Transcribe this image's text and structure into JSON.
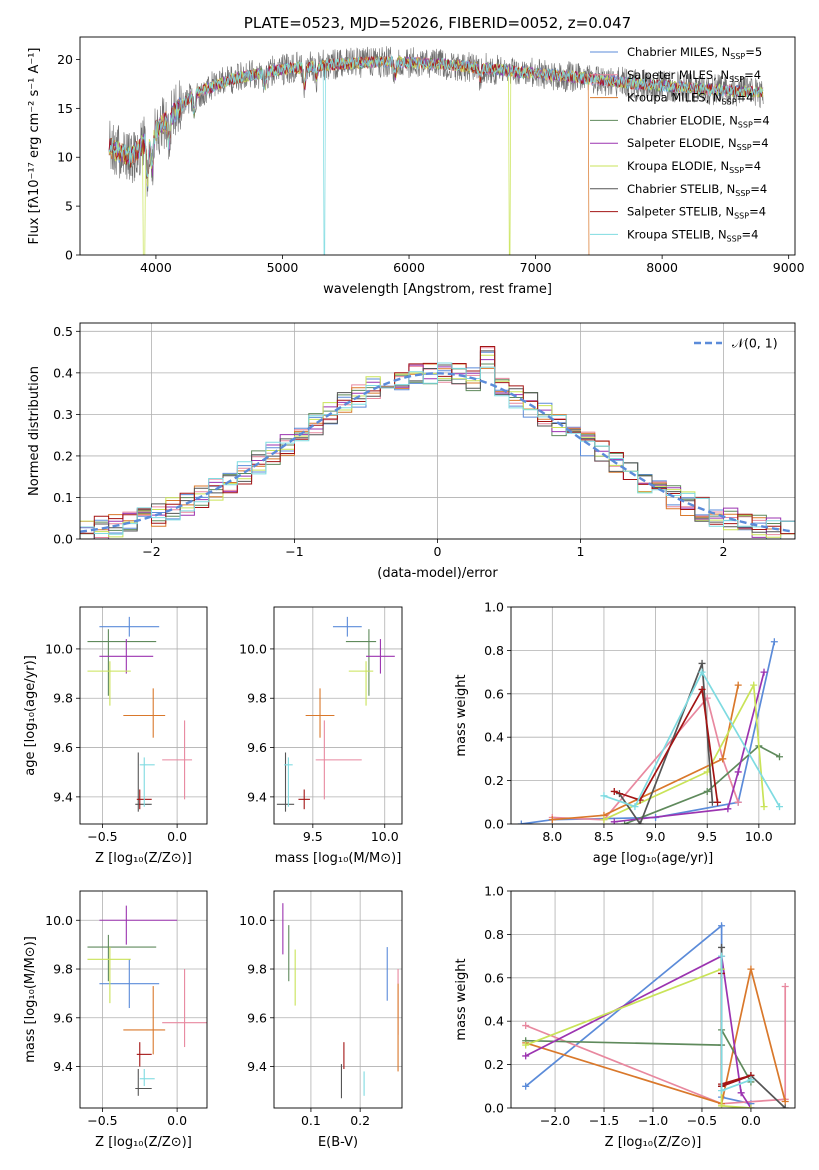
{
  "colors": {
    "Chabrier MILES": "#5b8bd9",
    "Salpeter MILES": "#e8889f",
    "Kroupa MILES": "#d9782b",
    "Chabrier ELODIE": "#5f8a5c",
    "Salpeter ELODIE": "#9b33b0",
    "Kroupa ELODIE": "#c9e358",
    "Chabrier STELIB": "#555555",
    "Salpeter STELIB": "#a31414",
    "Kroupa STELIB": "#7fdbe1"
  },
  "chart_data": [
    {
      "id": "spectrum",
      "type": "line",
      "title": "PLATE=0523, MJD=52026, FIBERID=0052, z=0.047",
      "xlabel": "wavelength [Angstrom, rest frame]",
      "ylabel": "Flux [fλ10⁻¹⁷ erg cm⁻² s⁻¹ A⁻¹]",
      "xlim": [
        3400,
        9050
      ],
      "ylim": [
        0,
        22.3
      ],
      "xticks": [
        4000,
        5000,
        6000,
        7000,
        8000,
        9000
      ],
      "yticks": [
        0,
        5,
        10,
        15,
        20
      ],
      "continuum": [
        [
          3630,
          11
        ],
        [
          3800,
          10
        ],
        [
          3950,
          12
        ],
        [
          4100,
          14
        ],
        [
          4300,
          16.5
        ],
        [
          4600,
          18
        ],
        [
          5000,
          19
        ],
        [
          5400,
          19.5
        ],
        [
          5800,
          19.8
        ],
        [
          6300,
          19.5
        ],
        [
          6800,
          18.8
        ],
        [
          7300,
          18.2
        ],
        [
          7800,
          17.5
        ],
        [
          8300,
          17
        ],
        [
          8800,
          16.6
        ]
      ],
      "series": [
        {
          "name": "Chabrier MILES",
          "nssp": "5"
        },
        {
          "name": "Salpeter MILES",
          "nssp": "4"
        },
        {
          "name": "Kroupa MILES",
          "nssp": "4"
        },
        {
          "name": "Chabrier ELODIE",
          "nssp": "4"
        },
        {
          "name": "Salpeter ELODIE",
          "nssp": "4"
        },
        {
          "name": "Kroupa ELODIE",
          "nssp": "4"
        },
        {
          "name": "Chabrier STELIB",
          "nssp": "4"
        },
        {
          "name": "Salpeter STELIB",
          "nssp": "4"
        },
        {
          "name": "Kroupa STELIB",
          "nssp": "4"
        }
      ],
      "nssp_prefix": "N",
      "nssp_sub": "SSP",
      "nssp_eq": "=",
      "legend": "upper right"
    },
    {
      "id": "residuals",
      "type": "line",
      "xlabel": "(data-model)/error",
      "ylabel": "Normed distribution",
      "xlim": [
        -2.5,
        2.5
      ],
      "ylim": [
        0,
        0.52
      ],
      "xticks": [
        -2,
        -1,
        0,
        1,
        2
      ],
      "yticks": [
        0.0,
        0.1,
        0.2,
        0.3,
        0.4,
        0.5
      ],
      "gaussian_label": "𝒩(0, 1)",
      "grid": true,
      "legend": "upper right"
    },
    {
      "id": "z-age",
      "type": "scatter",
      "xlabel": "Z [log₁₀(Z/Z⊙)]",
      "ylabel": "age  [log₁₀(age/yr)]",
      "xlim": [
        -0.65,
        0.2
      ],
      "ylim": [
        9.29,
        10.17
      ],
      "xticks": [
        -0.5,
        0.0
      ],
      "yticks": [
        9.4,
        9.6,
        9.8,
        10.0
      ],
      "points": [
        {
          "s": "Chabrier MILES",
          "x": -0.32,
          "y": 10.09,
          "xerr": [
            0.2,
            0.2
          ],
          "yerr": [
            0.04,
            0.04
          ]
        },
        {
          "s": "Salpeter MILES",
          "x": 0.05,
          "y": 9.55,
          "xerr": [
            0.15,
            0.05
          ],
          "yerr": [
            0.16,
            0.16
          ]
        },
        {
          "s": "Kroupa MILES",
          "x": -0.16,
          "y": 9.73,
          "xerr": [
            0.2,
            0.08
          ],
          "yerr": [
            0.09,
            0.11
          ]
        },
        {
          "s": "Chabrier ELODIE",
          "x": -0.46,
          "y": 10.03,
          "xerr": [
            0.14,
            0.32
          ],
          "yerr": [
            0.22,
            0.05
          ]
        },
        {
          "s": "Salpeter ELODIE",
          "x": -0.34,
          "y": 9.97,
          "xerr": [
            0.18,
            0.18
          ],
          "yerr": [
            0.07,
            0.07
          ]
        },
        {
          "s": "Kroupa ELODIE",
          "x": -0.45,
          "y": 9.91,
          "xerr": [
            0.15,
            0.14
          ],
          "yerr": [
            0.14,
            0.04
          ]
        },
        {
          "s": "Chabrier STELIB",
          "x": -0.26,
          "y": 9.37,
          "xerr": [
            0.02,
            0.09
          ],
          "yerr": [
            0.03,
            0.21
          ]
        },
        {
          "s": "Salpeter STELIB",
          "x": -0.25,
          "y": 9.39,
          "xerr": [
            0.02,
            0.08
          ],
          "yerr": [
            0.04,
            0.04
          ]
        },
        {
          "s": "Kroupa STELIB",
          "x": -0.22,
          "y": 9.53,
          "xerr": [
            0.03,
            0.07
          ],
          "yerr": [
            0.17,
            0.03
          ]
        }
      ]
    },
    {
      "id": "mass-age",
      "type": "scatter",
      "xlabel": "mass [log₁₀(M/M⊙)]",
      "ylabel": "",
      "xlim": [
        9.23,
        10.12
      ],
      "ylim": [
        9.29,
        10.17
      ],
      "xticks": [
        9.5,
        10.0
      ],
      "yticks": [
        9.4,
        9.6,
        9.8,
        10.0
      ],
      "points": [
        {
          "s": "Chabrier MILES",
          "x": 9.74,
          "y": 10.09,
          "xerr": [
            0.1,
            0.1
          ],
          "yerr": [
            0.04,
            0.04
          ]
        },
        {
          "s": "Salpeter MILES",
          "x": 9.58,
          "y": 9.55,
          "xerr": [
            0.06,
            0.26
          ],
          "yerr": [
            0.16,
            0.16
          ]
        },
        {
          "s": "Kroupa MILES",
          "x": 9.55,
          "y": 9.73,
          "xerr": [
            0.1,
            0.1
          ],
          "yerr": [
            0.09,
            0.11
          ]
        },
        {
          "s": "Chabrier ELODIE",
          "x": 9.89,
          "y": 10.03,
          "xerr": [
            0.16,
            0.05
          ],
          "yerr": [
            0.22,
            0.05
          ]
        },
        {
          "s": "Salpeter ELODIE",
          "x": 9.97,
          "y": 9.97,
          "xerr": [
            0.1,
            0.1
          ],
          "yerr": [
            0.07,
            0.07
          ]
        },
        {
          "s": "Kroupa ELODIE",
          "x": 9.87,
          "y": 9.91,
          "xerr": [
            0.12,
            0.05
          ],
          "yerr": [
            0.14,
            0.04
          ]
        },
        {
          "s": "Chabrier STELIB",
          "x": 9.31,
          "y": 9.37,
          "xerr": [
            0.06,
            0.06
          ],
          "yerr": [
            0.03,
            0.21
          ]
        },
        {
          "s": "Salpeter STELIB",
          "x": 9.44,
          "y": 9.39,
          "xerr": [
            0.04,
            0.04
          ],
          "yerr": [
            0.04,
            0.04
          ]
        },
        {
          "s": "Kroupa STELIB",
          "x": 9.33,
          "y": 9.53,
          "xerr": [
            0.03,
            0.03
          ],
          "yerr": [
            0.17,
            0.03
          ]
        }
      ]
    },
    {
      "id": "age-weight",
      "type": "line",
      "xlabel": "age  [log₁₀(age/yr)]",
      "ylabel": "mass weight",
      "xlim": [
        7.6,
        10.35
      ],
      "ylim": [
        0.0,
        1.0
      ],
      "xticks": [
        8.0,
        8.5,
        9.0,
        9.5,
        10.0
      ],
      "yticks": [
        0.0,
        0.2,
        0.4,
        0.6,
        0.8,
        1.0
      ],
      "series": [
        {
          "name": "Chabrier MILES",
          "points": [
            [
              7.7,
              0.0
            ],
            [
              8.0,
              0.02
            ],
            [
              9.0,
              0.03
            ],
            [
              9.8,
              0.1
            ],
            [
              10.15,
              0.84
            ]
          ]
        },
        {
          "name": "Salpeter MILES",
          "points": [
            [
              8.0,
              0.03
            ],
            [
              8.5,
              0.02
            ],
            [
              9.5,
              0.58
            ],
            [
              9.65,
              0.3
            ],
            [
              9.8,
              0.1
            ]
          ]
        },
        {
          "name": "Kroupa MILES",
          "points": [
            [
              8.0,
              0.02
            ],
            [
              8.5,
              0.04
            ],
            [
              9.65,
              0.3
            ],
            [
              9.8,
              0.64
            ]
          ]
        },
        {
          "name": "Chabrier ELODIE",
          "points": [
            [
              8.7,
              0.0
            ],
            [
              9.5,
              0.15
            ],
            [
              10.0,
              0.36
            ],
            [
              10.2,
              0.31
            ]
          ]
        },
        {
          "name": "Salpeter ELODIE",
          "points": [
            [
              8.6,
              0.01
            ],
            [
              9.7,
              0.07
            ],
            [
              9.8,
              0.24
            ],
            [
              10.05,
              0.7
            ]
          ]
        },
        {
          "name": "Kroupa ELODIE",
          "points": [
            [
              8.5,
              0.02
            ],
            [
              9.5,
              0.24
            ],
            [
              9.95,
              0.64
            ],
            [
              10.05,
              0.08
            ]
          ]
        },
        {
          "name": "Chabrier STELIB",
          "points": [
            [
              8.65,
              0.14
            ],
            [
              8.85,
              0.0
            ],
            [
              9.45,
              0.74
            ],
            [
              9.55,
              0.1
            ]
          ]
        },
        {
          "name": "Salpeter STELIB",
          "points": [
            [
              8.6,
              0.15
            ],
            [
              8.85,
              0.11
            ],
            [
              9.45,
              0.62
            ],
            [
              9.6,
              0.1
            ]
          ]
        },
        {
          "name": "Kroupa STELIB",
          "points": [
            [
              8.5,
              0.13
            ],
            [
              8.8,
              0.08
            ],
            [
              9.45,
              0.7
            ],
            [
              10.2,
              0.08
            ]
          ]
        }
      ]
    },
    {
      "id": "z-mass",
      "type": "scatter",
      "xlabel": "Z [log₁₀(Z/Z⊙)]",
      "ylabel": "mass [log₁₀(M/M⊙)]",
      "xlim": [
        -0.65,
        0.2
      ],
      "ylim": [
        9.23,
        10.12
      ],
      "xticks": [
        -0.5,
        0.0
      ],
      "yticks": [
        9.4,
        9.6,
        9.8,
        10.0
      ],
      "points": [
        {
          "s": "Chabrier MILES",
          "x": -0.32,
          "y": 9.74,
          "xerr": [
            0.2,
            0.2
          ],
          "yerr": [
            0.1,
            0.1
          ]
        },
        {
          "s": "Salpeter MILES",
          "x": 0.05,
          "y": 9.58,
          "xerr": [
            0.15,
            0.18
          ],
          "yerr": [
            0.1,
            0.22
          ]
        },
        {
          "s": "Kroupa MILES",
          "x": -0.16,
          "y": 9.55,
          "xerr": [
            0.2,
            0.08
          ],
          "yerr": [
            0.1,
            0.18
          ]
        },
        {
          "s": "Chabrier ELODIE",
          "x": -0.46,
          "y": 9.89,
          "xerr": [
            0.14,
            0.32
          ],
          "yerr": [
            0.14,
            0.05
          ]
        },
        {
          "s": "Salpeter ELODIE",
          "x": -0.34,
          "y": 10.0,
          "xerr": [
            0.18,
            0.34
          ],
          "yerr": [
            0.1,
            0.06
          ]
        },
        {
          "s": "Kroupa ELODIE",
          "x": -0.45,
          "y": 9.84,
          "xerr": [
            0.15,
            0.14
          ],
          "yerr": [
            0.18,
            0.05
          ]
        },
        {
          "s": "Chabrier STELIB",
          "x": -0.26,
          "y": 9.31,
          "xerr": [
            0.02,
            0.09
          ],
          "yerr": [
            0.03,
            0.08
          ]
        },
        {
          "s": "Salpeter STELIB",
          "x": -0.25,
          "y": 9.45,
          "xerr": [
            0.02,
            0.08
          ],
          "yerr": [
            0.05,
            0.05
          ]
        },
        {
          "s": "Kroupa STELIB",
          "x": -0.22,
          "y": 9.35,
          "xerr": [
            0.03,
            0.07
          ],
          "yerr": [
            0.03,
            0.04
          ]
        }
      ]
    },
    {
      "id": "ebv-mass",
      "type": "scatter",
      "xlabel": "E(B-V)",
      "ylabel": "",
      "xlim": [
        0.025,
        0.285
      ],
      "ylim": [
        9.23,
        10.12
      ],
      "xticks": [
        0.1,
        0.2
      ],
      "yticks": [
        9.4,
        9.6,
        9.8,
        10.0
      ],
      "bars": [
        {
          "s": "Chabrier MILES",
          "x": 0.255,
          "y0": 9.67,
          "y1": 9.89
        },
        {
          "s": "Salpeter MILES",
          "x": 0.277,
          "y0": 9.53,
          "y1": 9.8
        },
        {
          "s": "Kroupa MILES",
          "x": 0.277,
          "y0": 9.38,
          "y1": 9.74
        },
        {
          "s": "Chabrier ELODIE",
          "x": 0.055,
          "y0": 9.75,
          "y1": 9.98
        },
        {
          "s": "Salpeter ELODIE",
          "x": 0.043,
          "y0": 9.86,
          "y1": 10.07
        },
        {
          "s": "Kroupa ELODIE",
          "x": 0.068,
          "y0": 9.65,
          "y1": 9.88
        },
        {
          "s": "Chabrier STELIB",
          "x": 0.162,
          "y0": 9.27,
          "y1": 9.41
        },
        {
          "s": "Salpeter STELIB",
          "x": 0.167,
          "y0": 9.39,
          "y1": 9.5
        },
        {
          "s": "Kroupa STELIB",
          "x": 0.208,
          "y0": 9.28,
          "y1": 9.38
        }
      ]
    },
    {
      "id": "z-weight",
      "type": "line",
      "xlabel": "Z [log₁₀(Z/Z⊙)]",
      "ylabel": "mass weight",
      "xlim": [
        -2.45,
        0.45
      ],
      "ylim": [
        0.0,
        1.0
      ],
      "xticks": [
        -2.0,
        -1.5,
        -1.0,
        -0.5,
        0.0
      ],
      "yticks": [
        0.0,
        0.2,
        0.4,
        0.6,
        0.8,
        1.0
      ],
      "series": [
        {
          "name": "Chabrier MILES",
          "points": [
            [
              -2.3,
              0.1
            ],
            [
              -0.3,
              0.84
            ],
            [
              -0.3,
              0.05
            ],
            [
              0.0,
              0.02
            ]
          ]
        },
        {
          "name": "Salpeter MILES",
          "points": [
            [
              -2.3,
              0.38
            ],
            [
              -0.3,
              0.02
            ],
            [
              0.35,
              0.04
            ],
            [
              0.35,
              0.56
            ]
          ]
        },
        {
          "name": "Kroupa MILES",
          "points": [
            [
              -2.3,
              0.3
            ],
            [
              -0.3,
              0.02
            ],
            [
              0.0,
              0.64
            ],
            [
              0.35,
              0.03
            ]
          ]
        },
        {
          "name": "Chabrier ELODIE",
          "points": [
            [
              -2.3,
              0.31
            ],
            [
              -0.3,
              0.29
            ],
            [
              -0.3,
              0.36
            ],
            [
              0.0,
              0.12
            ]
          ]
        },
        {
          "name": "Salpeter ELODIE",
          "points": [
            [
              -2.3,
              0.24
            ],
            [
              -0.3,
              0.7
            ],
            [
              -0.1,
              0.07
            ],
            [
              0.0,
              0.0
            ]
          ]
        },
        {
          "name": "Kroupa ELODIE",
          "points": [
            [
              -2.3,
              0.29
            ],
            [
              -0.3,
              0.64
            ],
            [
              -0.3,
              0.01
            ],
            [
              0.0,
              0.0
            ]
          ]
        },
        {
          "name": "Chabrier STELIB",
          "points": [
            [
              -0.3,
              0.74
            ],
            [
              -0.3,
              0.1
            ],
            [
              0.0,
              0.15
            ],
            [
              0.35,
              0.0
            ]
          ]
        },
        {
          "name": "Salpeter STELIB",
          "points": [
            [
              -0.3,
              0.62
            ],
            [
              -0.3,
              0.11
            ],
            [
              0.0,
              0.15
            ],
            [
              -0.3,
              0.1
            ]
          ]
        },
        {
          "name": "Kroupa STELIB",
          "points": [
            [
              -0.3,
              0.7
            ],
            [
              -0.3,
              0.08
            ],
            [
              0.0,
              0.13
            ]
          ]
        }
      ]
    }
  ]
}
